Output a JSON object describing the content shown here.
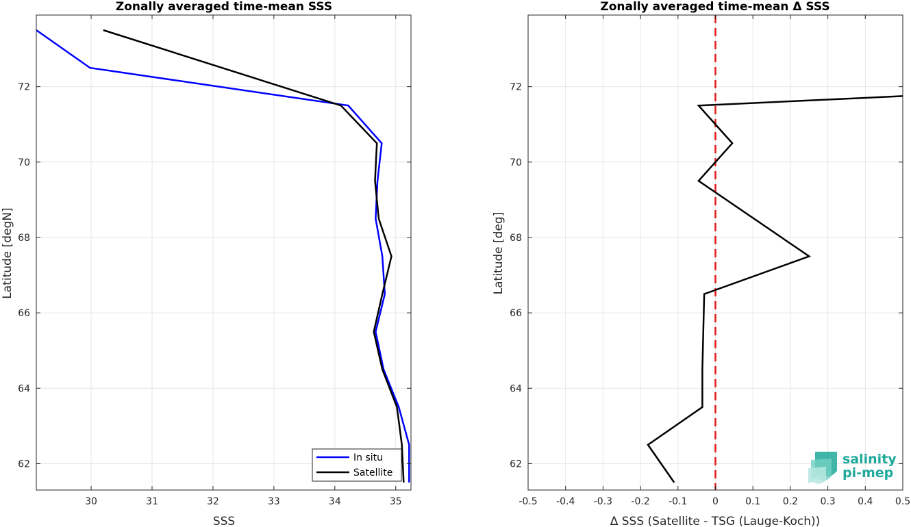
{
  "chart_data": [
    {
      "type": "line",
      "title": "Zonally averaged time-mean SSS",
      "xlabel": "SSS",
      "ylabel": "Latitude [degN]",
      "xlim": [
        29.1,
        35.25
      ],
      "ylim": [
        61.3,
        73.9
      ],
      "xticks": [
        "30",
        "31",
        "32",
        "33",
        "34",
        "35"
      ],
      "yticks": [
        "62",
        "64",
        "66",
        "68",
        "70",
        "72"
      ],
      "grid": true,
      "legend_position": "bottom-right",
      "series": [
        {
          "name": "In situ",
          "color": "#0000ff",
          "points": [
            {
              "x": 35.22,
              "y": 61.5
            },
            {
              "x": 35.22,
              "y": 62.5
            },
            {
              "x": 35.05,
              "y": 63.5
            },
            {
              "x": 34.8,
              "y": 64.5
            },
            {
              "x": 34.67,
              "y": 65.5
            },
            {
              "x": 34.82,
              "y": 66.5
            },
            {
              "x": 34.78,
              "y": 67.5
            },
            {
              "x": 34.67,
              "y": 68.5
            },
            {
              "x": 34.7,
              "y": 69.5
            },
            {
              "x": 34.77,
              "y": 70.5
            },
            {
              "x": 34.22,
              "y": 71.5
            },
            {
              "x": 29.98,
              "y": 72.5
            },
            {
              "x": 29.1,
              "y": 73.5
            }
          ]
        },
        {
          "name": "Satellite",
          "color": "#000000",
          "points": [
            {
              "x": 35.13,
              "y": 61.5
            },
            {
              "x": 35.1,
              "y": 62.5
            },
            {
              "x": 35.02,
              "y": 63.5
            },
            {
              "x": 34.78,
              "y": 64.5
            },
            {
              "x": 34.64,
              "y": 65.5
            },
            {
              "x": 34.78,
              "y": 66.5
            },
            {
              "x": 34.93,
              "y": 67.5
            },
            {
              "x": 34.72,
              "y": 68.5
            },
            {
              "x": 34.66,
              "y": 69.5
            },
            {
              "x": 34.69,
              "y": 70.5
            },
            {
              "x": 34.1,
              "y": 71.5
            },
            {
              "x": 30.2,
              "y": 73.5
            }
          ]
        }
      ]
    },
    {
      "type": "line",
      "title": "Zonally averaged time-mean Δ SSS",
      "xlabel": "Δ SSS (Satellite - TSG (Lauge-Koch))",
      "ylabel": "Latitude [deg]",
      "xlim": [
        -0.5,
        0.5
      ],
      "ylim": [
        61.3,
        73.9
      ],
      "xticks": [
        "-0.5",
        "-0.4",
        "-0.3",
        "-0.2",
        "-0.1",
        "0",
        "0.1",
        "0.2",
        "0.3",
        "0.4",
        "0.5"
      ],
      "yticks": [
        "62",
        "64",
        "66",
        "68",
        "70",
        "72"
      ],
      "grid": true,
      "reference_line": {
        "x": 0,
        "color": "#e21a1a",
        "style": "dashed"
      },
      "series": [
        {
          "color": "#000000",
          "points": [
            {
              "x": -0.11,
              "y": 61.5
            },
            {
              "x": -0.18,
              "y": 62.5
            },
            {
              "x": -0.035,
              "y": 63.5
            },
            {
              "x": -0.035,
              "y": 64.5
            },
            {
              "x": -0.03,
              "y": 66.5
            },
            {
              "x": 0.25,
              "y": 67.5
            },
            {
              "x": -0.045,
              "y": 69.5
            },
            {
              "x": 0.045,
              "y": 70.5
            },
            {
              "x": -0.045,
              "y": 71.5
            },
            {
              "x": 0.5,
              "y": 71.75
            }
          ]
        }
      ]
    }
  ],
  "logo": {
    "line1": "salinity",
    "line2": "pi-mep",
    "color": "#1fa99a"
  }
}
